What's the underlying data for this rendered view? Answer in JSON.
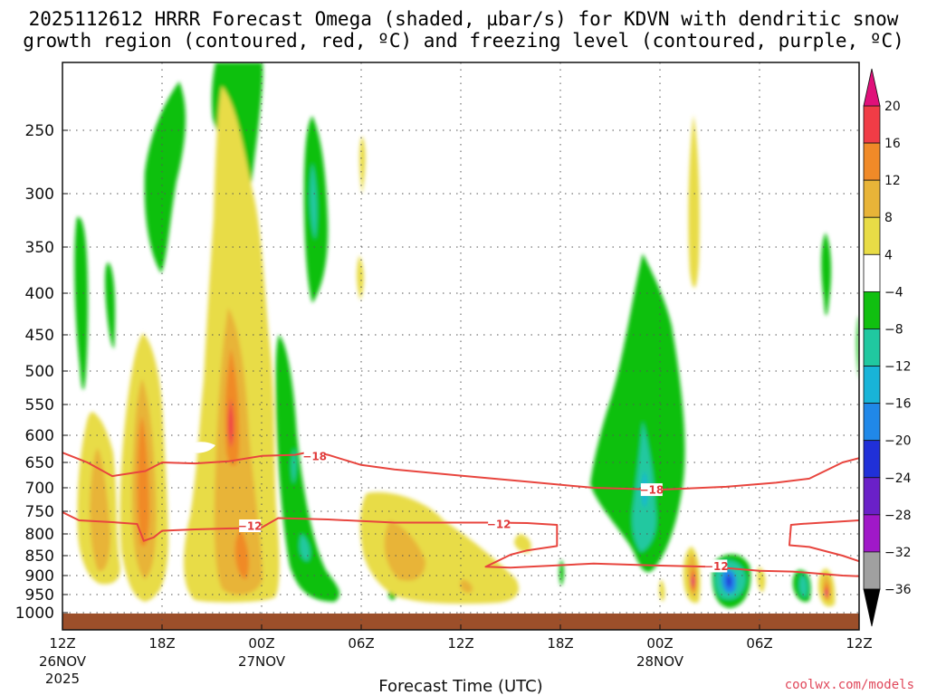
{
  "title": {
    "line1": "2025112612 HRRR Forecast Omega (shaded, µbar/s) for KDVN with dendritic snow",
    "line2": "growth region (contoured, red, ºC) and freezing level (contoured, purple, ºC)"
  },
  "xaxis": {
    "label": "Forecast Time (UTC)",
    "ticks": [
      {
        "hour": 0,
        "label": "12Z",
        "date": "26NOV",
        "year": "2025"
      },
      {
        "hour": 6,
        "label": "18Z",
        "date": "",
        "year": ""
      },
      {
        "hour": 12,
        "label": "00Z",
        "date": "27NOV",
        "year": ""
      },
      {
        "hour": 18,
        "label": "06Z",
        "date": "",
        "year": ""
      },
      {
        "hour": 24,
        "label": "12Z",
        "date": "",
        "year": ""
      },
      {
        "hour": 30,
        "label": "18Z",
        "date": "",
        "year": ""
      },
      {
        "hour": 36,
        "label": "00Z",
        "date": "28NOV",
        "year": ""
      },
      {
        "hour": 42,
        "label": "06Z",
        "date": "",
        "year": ""
      },
      {
        "hour": 48,
        "label": "12Z",
        "date": "",
        "year": ""
      }
    ]
  },
  "credit": "coolwx.com/models",
  "colors": {
    "contour": "#e8453e",
    "ground": "#9c4f2a",
    "grid": "#555555"
  },
  "chart_data": {
    "type": "contour",
    "x_range_hours": [
      0,
      48
    ],
    "y_axis": "pressure (hPa)",
    "y_range": [
      1040,
      200
    ],
    "y_ticks": [
      250,
      300,
      350,
      400,
      450,
      500,
      550,
      600,
      650,
      700,
      750,
      800,
      850,
      900,
      950,
      1000
    ],
    "grid": true,
    "colorbar": {
      "labels": [
        "20",
        "16",
        "12",
        "8",
        "4",
        "−4",
        "−8",
        "−12",
        "−16",
        "−20",
        "−24",
        "−28",
        "−32",
        "−36"
      ],
      "bins": [
        {
          "from": 16,
          "to": 20,
          "color": "#f03c46"
        },
        {
          "from": 12,
          "to": 16,
          "color": "#f08a28"
        },
        {
          "from": 8,
          "to": 12,
          "color": "#e8b438"
        },
        {
          "from": 4,
          "to": 8,
          "color": "#e8dc46"
        },
        {
          "from": -4,
          "to": 4,
          "color": "#ffffff"
        },
        {
          "from": -8,
          "to": -4,
          "color": "#10c010"
        },
        {
          "from": -12,
          "to": -8,
          "color": "#20c8a0"
        },
        {
          "from": -16,
          "to": -12,
          "color": "#18b4d8"
        },
        {
          "from": -20,
          "to": -16,
          "color": "#2088e8"
        },
        {
          "from": -24,
          "to": -20,
          "color": "#2030d8"
        },
        {
          "from": -28,
          "to": -24,
          "color": "#6a20c8"
        },
        {
          "from": -32,
          "to": -28,
          "color": "#a018c8"
        },
        {
          "from": -36,
          "to": -32,
          "color": "#a0a0a0"
        }
      ],
      "top_cap_color": "#e0107a",
      "bottom_cap_color": "#000000"
    },
    "contour_labels": [
      {
        "text": "−18",
        "x_hours": 15.2,
        "p": 638
      },
      {
        "text": "−12",
        "x_hours": 11.3,
        "p": 782
      },
      {
        "text": "−12",
        "x_hours": 26.3,
        "p": 778
      },
      {
        "text": "−18",
        "x_hours": 35.5,
        "p": 704
      },
      {
        "text": "−12",
        "x_hours": 39.4,
        "p": 876
      }
    ],
    "contours": [
      {
        "level": -18,
        "points": [
          [
            0,
            632
          ],
          [
            1.5,
            650
          ],
          [
            3,
            677
          ],
          [
            5,
            667
          ],
          [
            6,
            650
          ],
          [
            8,
            652
          ],
          [
            10,
            648
          ],
          [
            12,
            638
          ],
          [
            14,
            636
          ],
          [
            15,
            630
          ],
          [
            16,
            636
          ],
          [
            18,
            655
          ],
          [
            20,
            664
          ],
          [
            24,
            676
          ],
          [
            28,
            688
          ],
          [
            32,
            700
          ],
          [
            36,
            704
          ],
          [
            40,
            698
          ],
          [
            43,
            690
          ],
          [
            45,
            682
          ],
          [
            47,
            650
          ],
          [
            48,
            642
          ]
        ]
      },
      {
        "level": -12,
        "points": [
          [
            0,
            752
          ],
          [
            1,
            770
          ],
          [
            3,
            774
          ],
          [
            4.5,
            778
          ],
          [
            4.9,
            816
          ],
          [
            5.5,
            808
          ],
          [
            6,
            793
          ],
          [
            8,
            790
          ],
          [
            12,
            786
          ],
          [
            13,
            765
          ],
          [
            16,
            768
          ],
          [
            20,
            775
          ],
          [
            24,
            775
          ],
          [
            26,
            775
          ],
          [
            28,
            776
          ],
          [
            29.8,
            780
          ],
          [
            29.8,
            828
          ],
          [
            28,
            838
          ],
          [
            27,
            848
          ],
          [
            25.5,
            878
          ],
          [
            27,
            880
          ],
          [
            32,
            870
          ],
          [
            36,
            875
          ],
          [
            39,
            878
          ],
          [
            42,
            888
          ],
          [
            44,
            890
          ],
          [
            47,
            900
          ],
          [
            48,
            902
          ]
        ]
      },
      {
        "level": -12,
        "points": [
          [
            48,
            770
          ],
          [
            44.5,
            778
          ],
          [
            43.9,
            780
          ],
          [
            43.8,
            826
          ],
          [
            45,
            830
          ],
          [
            47,
            850
          ],
          [
            48,
            864
          ]
        ]
      }
    ],
    "ground_level_p": 1002
  }
}
